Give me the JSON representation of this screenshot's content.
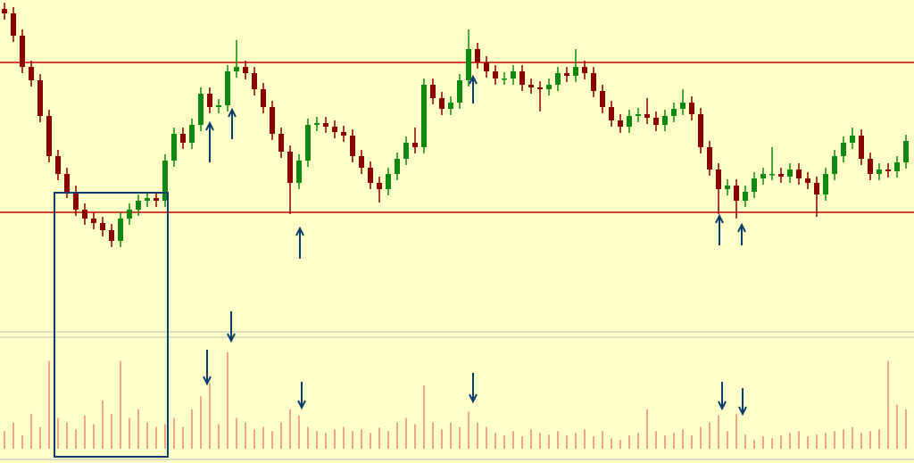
{
  "chart_data": {
    "type": "candlestick",
    "up_color": "#118811",
    "down_color": "#8b0000",
    "volume_color": "#e26a5a",
    "level_color": "#cc0000",
    "ylim": [
      0,
      365
    ],
    "y2lim": [
      0,
      125
    ],
    "levels": [
      295,
      127
    ],
    "candles": [
      [
        355,
        362,
        343,
        350
      ],
      [
        350,
        357,
        318,
        325
      ],
      [
        325,
        332,
        283,
        290
      ],
      [
        290,
        297,
        268,
        275
      ],
      [
        275,
        282,
        228,
        235
      ],
      [
        235,
        242,
        183,
        190
      ],
      [
        190,
        197,
        163,
        170
      ],
      [
        170,
        177,
        143,
        150
      ],
      [
        150,
        157,
        123,
        130
      ],
      [
        130,
        137,
        113,
        120
      ],
      [
        120,
        127,
        108,
        115
      ],
      [
        115,
        122,
        100,
        107
      ],
      [
        107,
        114,
        88,
        95
      ],
      [
        95,
        127,
        88,
        120
      ],
      [
        120,
        137,
        113,
        130
      ],
      [
        130,
        147,
        123,
        140
      ],
      [
        140,
        150,
        133,
        143
      ],
      [
        143,
        150,
        133,
        140
      ],
      [
        140,
        192,
        133,
        185
      ],
      [
        185,
        222,
        178,
        215
      ],
      [
        215,
        222,
        198,
        205
      ],
      [
        205,
        232,
        198,
        225
      ],
      [
        225,
        267,
        218,
        260
      ],
      [
        260,
        267,
        238,
        245
      ],
      [
        245,
        254,
        238,
        247
      ],
      [
        247,
        292,
        240,
        285
      ],
      [
        285,
        320,
        278,
        290
      ],
      [
        290,
        297,
        276,
        283
      ],
      [
        283,
        290,
        258,
        265
      ],
      [
        265,
        272,
        238,
        245
      ],
      [
        245,
        252,
        208,
        215
      ],
      [
        215,
        222,
        188,
        195
      ],
      [
        195,
        202,
        125,
        160
      ],
      [
        160,
        192,
        153,
        185
      ],
      [
        185,
        232,
        178,
        225
      ],
      [
        225,
        234,
        218,
        227
      ],
      [
        227,
        234,
        216,
        223
      ],
      [
        223,
        230,
        210,
        217
      ],
      [
        217,
        224,
        206,
        213
      ],
      [
        213,
        220,
        183,
        190
      ],
      [
        190,
        197,
        170,
        177
      ],
      [
        177,
        184,
        153,
        160
      ],
      [
        160,
        167,
        138,
        153
      ],
      [
        153,
        177,
        146,
        170
      ],
      [
        170,
        194,
        163,
        187
      ],
      [
        187,
        212,
        180,
        205
      ],
      [
        205,
        222,
        193,
        200
      ],
      [
        200,
        277,
        193,
        270
      ],
      [
        270,
        277,
        248,
        255
      ],
      [
        255,
        262,
        236,
        243
      ],
      [
        243,
        257,
        236,
        250
      ],
      [
        250,
        282,
        243,
        275
      ],
      [
        275,
        332,
        268,
        310
      ],
      [
        310,
        317,
        288,
        295
      ],
      [
        295,
        302,
        278,
        285
      ],
      [
        285,
        292,
        270,
        277
      ],
      [
        277,
        284,
        270,
        277
      ],
      [
        277,
        292,
        270,
        285
      ],
      [
        285,
        292,
        263,
        270
      ],
      [
        270,
        277,
        260,
        267
      ],
      [
        267,
        274,
        240,
        265
      ],
      [
        265,
        277,
        258,
        270
      ],
      [
        270,
        290,
        263,
        283
      ],
      [
        283,
        290,
        273,
        280
      ],
      [
        280,
        310,
        273,
        290
      ],
      [
        290,
        297,
        276,
        283
      ],
      [
        283,
        290,
        256,
        263
      ],
      [
        263,
        270,
        238,
        245
      ],
      [
        245,
        252,
        223,
        230
      ],
      [
        230,
        237,
        216,
        223
      ],
      [
        223,
        242,
        216,
        235
      ],
      [
        235,
        244,
        228,
        237
      ],
      [
        237,
        255,
        226,
        233
      ],
      [
        233,
        240,
        218,
        225
      ],
      [
        225,
        242,
        218,
        235
      ],
      [
        235,
        250,
        228,
        243
      ],
      [
        243,
        265,
        236,
        250
      ],
      [
        250,
        257,
        230,
        237
      ],
      [
        237,
        244,
        193,
        200
      ],
      [
        200,
        207,
        168,
        175
      ],
      [
        175,
        182,
        125,
        153
      ],
      [
        153,
        164,
        146,
        157
      ],
      [
        157,
        164,
        120,
        140
      ],
      [
        140,
        157,
        133,
        150
      ],
      [
        150,
        172,
        143,
        165
      ],
      [
        165,
        177,
        158,
        170
      ],
      [
        170,
        200,
        163,
        170
      ],
      [
        170,
        177,
        160,
        167
      ],
      [
        167,
        182,
        160,
        175
      ],
      [
        175,
        182,
        158,
        165
      ],
      [
        165,
        172,
        153,
        160
      ],
      [
        160,
        167,
        122,
        147
      ],
      [
        147,
        177,
        140,
        170
      ],
      [
        170,
        197,
        163,
        190
      ],
      [
        190,
        212,
        183,
        205
      ],
      [
        205,
        222,
        198,
        213
      ],
      [
        213,
        220,
        180,
        187
      ],
      [
        187,
        194,
        163,
        170
      ],
      [
        170,
        182,
        163,
        175
      ],
      [
        175,
        182,
        166,
        173
      ],
      [
        173,
        190,
        166,
        183
      ],
      [
        183,
        214,
        176,
        207
      ]
    ],
    "volume": [
      20,
      30,
      15,
      40,
      25,
      100,
      35,
      30,
      22,
      38,
      28,
      55,
      40,
      100,
      35,
      45,
      30,
      25,
      28,
      35,
      25,
      45,
      60,
      75,
      28,
      110,
      35,
      30,
      22,
      25,
      20,
      30,
      45,
      38,
      25,
      20,
      18,
      22,
      25,
      20,
      22,
      18,
      24,
      20,
      30,
      35,
      28,
      72,
      30,
      22,
      30,
      25,
      42,
      30,
      25,
      18,
      15,
      20,
      14,
      22,
      18,
      16,
      20,
      15,
      18,
      22,
      14,
      20,
      12,
      10,
      15,
      18,
      45,
      20,
      15,
      18,
      22,
      15,
      25,
      30,
      38,
      20,
      40,
      16,
      10,
      14,
      12,
      15,
      18,
      20,
      14,
      16,
      18,
      20,
      22,
      25,
      18,
      20,
      22,
      100,
      50,
      45
    ]
  }
}
